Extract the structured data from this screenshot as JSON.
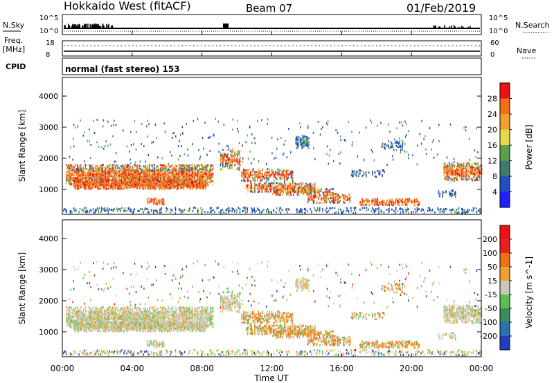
{
  "header": {
    "title": "Hokkaido West (fitACF)",
    "beam": "Beam 07",
    "date": "01/Feb/2019"
  },
  "status_panels": {
    "nsky_label": "N.Sky",
    "nsky_top": "10^5",
    "nsky_bottom": "10^0",
    "nsearch_label": "N.Search",
    "nsearch_top": "10^5",
    "nsearch_bottom": "10^0",
    "freq_label": "Freq.",
    "freq_unit": "[MHz]",
    "freq_top": "18",
    "freq_bottom": "8",
    "nave_label": "Nave",
    "nave_top": "60",
    "nave_bottom": "0",
    "cpid_label": "CPID",
    "cpid_text": "normal (fast stereo) 153"
  },
  "chart_data": [
    {
      "type": "heatmap",
      "title": "",
      "ylabel": "Slant Range [km]",
      "yticks": [
        "1000",
        "2000",
        "3000",
        "4000"
      ],
      "ylim": [
        200,
        4600
      ],
      "xlim": [
        "00:00",
        "24:00"
      ],
      "colorbar_label": "Power [dB]",
      "colorbar_ticks": [
        "4",
        "8",
        "12",
        "16",
        "20",
        "24",
        "28"
      ],
      "colorbar_colors": [
        "#1f1fff",
        "#2050c0",
        "#3a7a70",
        "#5aa04a",
        "#e8d84a",
        "#f0a030",
        "#f07018",
        "#f01010"
      ]
    },
    {
      "type": "heatmap",
      "title": "",
      "ylabel": "Slant Range [km]",
      "yticks": [
        "1000",
        "2000",
        "3000",
        "4000"
      ],
      "ylim": [
        200,
        4600
      ],
      "xlim": [
        "00:00",
        "24:00"
      ],
      "colorbar_label": "Velocity [m s^-1]",
      "colorbar_ticks": [
        "200",
        "100",
        "50",
        "15",
        "-15",
        "-50",
        "-100",
        "-200"
      ],
      "colorbar_colors": [
        "#1f3fc0",
        "#2a6fb0",
        "#3a8a60",
        "#5ac050",
        "#c8c8c0",
        "#f0a030",
        "#f07018",
        "#e82020",
        "#f01010"
      ]
    }
  ],
  "xaxis": {
    "ticks": [
      "00:00",
      "04:00",
      "08:00",
      "12:00",
      "16:00",
      "20:00",
      "00:00"
    ],
    "label": "Time UT"
  }
}
